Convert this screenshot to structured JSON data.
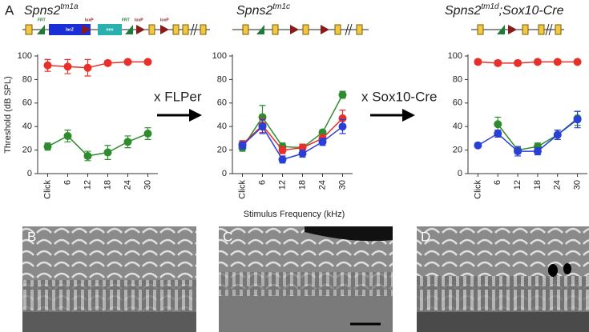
{
  "header": {
    "panel": "A"
  },
  "construct_labels": [
    "FRT",
    "lacZ",
    "loxP",
    "neo",
    "FRT",
    "loxP",
    "loxP"
  ],
  "arrows": [
    "x FLPer",
    "x Sox10-Cre"
  ],
  "image_panels": [
    "B",
    "C",
    "D"
  ],
  "chart_data": [
    {
      "type": "line",
      "title": {
        "base": "Spns2",
        "sup": "tm1a"
      },
      "ylabel": "Threshold (dB SPL)",
      "categories": [
        "Click",
        "6",
        "12",
        "18",
        "24",
        "30"
      ],
      "ylim": [
        0,
        100
      ],
      "yticks": [
        0,
        20,
        40,
        60,
        80,
        100
      ],
      "series": [
        {
          "color": "#e8302a",
          "values": [
            92,
            91,
            90,
            94,
            95,
            95
          ],
          "errors": [
            5,
            6,
            7,
            2,
            1,
            1
          ]
        },
        {
          "color": "#2e8b2e",
          "values": [
            23,
            32,
            15,
            18,
            27,
            34
          ],
          "errors": [
            3,
            5,
            4,
            6,
            5,
            5
          ]
        }
      ]
    },
    {
      "type": "line",
      "title": {
        "base": "Spns2",
        "sup": "tm1c"
      },
      "xlabel": "Stimulus Frequency (kHz)",
      "categories": [
        "Click",
        "6",
        "12",
        "18",
        "24",
        "30"
      ],
      "ylim": [
        0,
        100
      ],
      "yticks": [
        0,
        20,
        40,
        60,
        80,
        100
      ],
      "series": [
        {
          "color": "#2e8b2e",
          "values": [
            22,
            48,
            23,
            22,
            35,
            67
          ],
          "errors": [
            3,
            10,
            3,
            3,
            2,
            3
          ]
        },
        {
          "color": "#e8302a",
          "values": [
            25,
            41,
            20,
            22,
            30,
            47
          ],
          "errors": [
            3,
            6,
            3,
            3,
            3,
            7
          ]
        },
        {
          "color": "#2a3fd6",
          "values": [
            24,
            40,
            12,
            17,
            27,
            40
          ],
          "errors": [
            3,
            6,
            3,
            3,
            3,
            6
          ]
        }
      ]
    },
    {
      "type": "line",
      "title": {
        "base": "Spns2",
        "sup": "tm1d",
        "rest": ";Sox10-Cre"
      },
      "categories": [
        "Click",
        "6",
        "12",
        "18",
        "24",
        "30"
      ],
      "ylim": [
        0,
        100
      ],
      "yticks": [
        0,
        20,
        40,
        60,
        80,
        100
      ],
      "series": [
        {
          "color": "#e8302a",
          "values": [
            95,
            94,
            94,
            95,
            95,
            95
          ],
          "errors": [
            2,
            2,
            2,
            1,
            1,
            1
          ]
        },
        {
          "color": "#2e8b2e",
          "values": [
            null,
            42,
            20,
            23,
            33,
            47
          ],
          "errors": [
            null,
            6,
            3,
            3,
            4,
            6
          ]
        },
        {
          "color": "#2a3fd6",
          "values": [
            24,
            34,
            19,
            19,
            33,
            46
          ],
          "errors": [
            2,
            3,
            4,
            3,
            4,
            7
          ]
        }
      ]
    }
  ]
}
